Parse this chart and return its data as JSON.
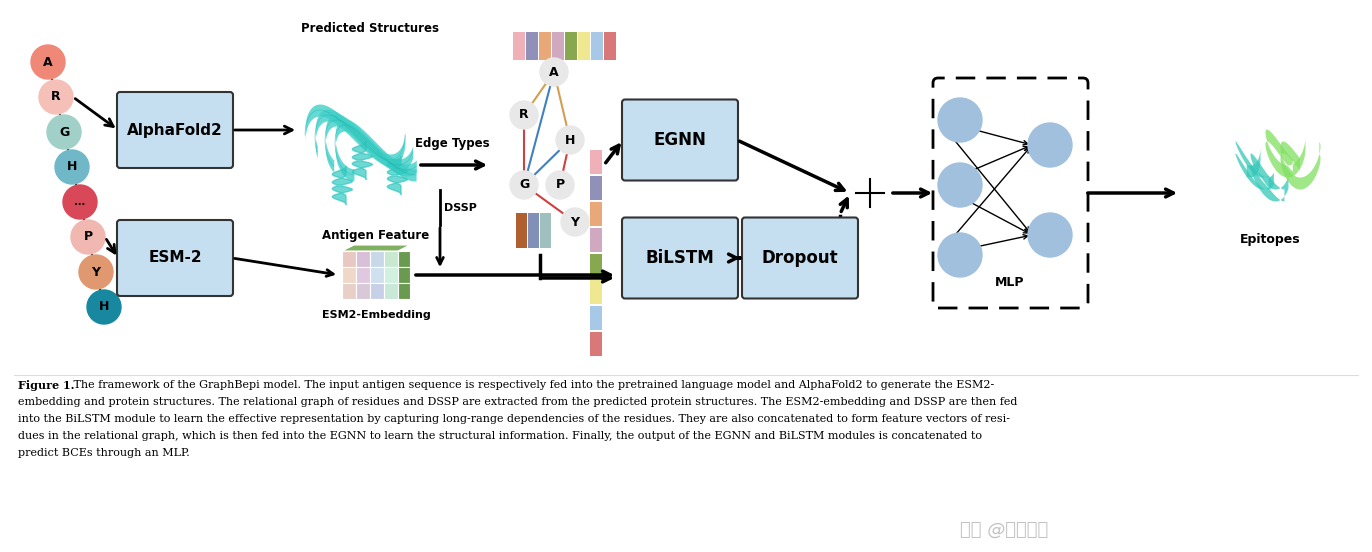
{
  "bg_color": "#ffffff",
  "fig_width": 13.72,
  "fig_height": 5.52,
  "caption_lines": [
    "Figure 1. The framework of the GraphBepi model. The input antigen sequence is respectively fed into the pretrained language model and AlphaFold2 to generate the ESM2-",
    "embedding and protein structures. The relational graph of residues and DSSP are extracted from the predicted protein structures. The ESM2-embedding and DSSP are then fed",
    "into the BiLSTM module to learn the effective representation by capturing long-range dependencies of the residues. They are also concatenated to form feature vectors of resi-",
    "dues in the relational graph, which is then fed into the EGNN to learn the structural information. Finally, the output of the EGNN and BiLSTM modules is concatenated to",
    "predict BCEs through an MLP."
  ],
  "aa_labels": [
    "A",
    "R",
    "G",
    "H",
    "...",
    "P",
    "Y",
    "H"
  ],
  "aa_colors": [
    "#f08878",
    "#f5c0b8",
    "#a0d0c8",
    "#70b8c8",
    "#d84858",
    "#f0b8b0",
    "#e09870",
    "#1888a0"
  ],
  "box_color": "#c5dff0",
  "box_edge_color": "#333333",
  "node_color": "#a0c0de",
  "strip_colors_top": [
    "#f0b0b8",
    "#9090b8",
    "#e8a878",
    "#d0a8c0",
    "#88a850",
    "#f0e890",
    "#a8c8e8",
    "#d87878"
  ],
  "strip_colors_right": [
    "#d07878",
    "#a0a8d0",
    "#e0a870",
    "#a888a8",
    "#f0d888",
    "#88a8d8",
    "#d0c0b0",
    "#8888b0"
  ],
  "graph_edge_colors": {
    "A-R": "#d0a860",
    "A-H": "#d0a860",
    "R-G": "#d04040",
    "G-H_bot": "#4080c0",
    "A-G": "#4080c0",
    "H_top-P": "#d04040",
    "G-Y": "#d04040"
  },
  "watermark": "知乎 @生物脾码"
}
